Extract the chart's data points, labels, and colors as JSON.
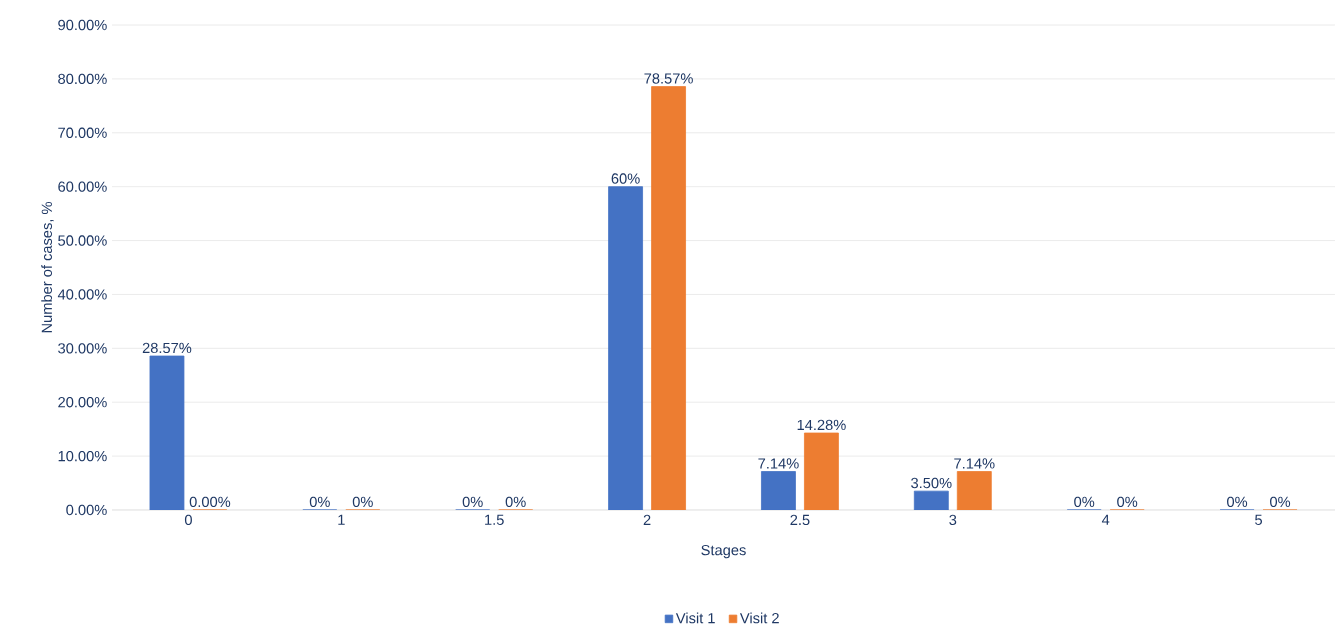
{
  "chart_data": {
    "type": "bar",
    "xlabel": "Stages",
    "ylabel": "Number of cases, %",
    "categories": [
      "0",
      "1",
      "1.5",
      "2",
      "2.5",
      "3",
      "4",
      "5"
    ],
    "series": [
      {
        "name": "Visit 1",
        "color": "#4472c4",
        "values": [
          28.57,
          0,
          0,
          60,
          7.14,
          3.5,
          0,
          0
        ],
        "value_labels": [
          "28.57%",
          "0%",
          "0%",
          "60%",
          "7.14%",
          "3.50%",
          "0%",
          "0%"
        ]
      },
      {
        "name": "Visit 2",
        "color": "#ed7d31",
        "values": [
          0,
          0,
          0,
          78.57,
          14.28,
          7.14,
          0,
          0
        ],
        "value_labels": [
          "0.00%",
          "0%",
          "0%",
          "78.57%",
          "14.28%",
          "7.14%",
          "0%",
          "0%"
        ]
      }
    ],
    "ylim": [
      0,
      90
    ],
    "yticks": [
      {
        "value": 0,
        "label": "0.00%"
      },
      {
        "value": 10,
        "label": "10.00%"
      },
      {
        "value": 20,
        "label": "20.00%"
      },
      {
        "value": 30,
        "label": "30.00%"
      },
      {
        "value": 40,
        "label": "40.00%"
      },
      {
        "value": 50,
        "label": "50.00%"
      },
      {
        "value": 60,
        "label": "60.00%"
      },
      {
        "value": 70,
        "label": "70.00%"
      },
      {
        "value": 80,
        "label": "80.00%"
      },
      {
        "value": 90,
        "label": "90.00%"
      }
    ],
    "grid": "y",
    "legend": "bottom"
  }
}
